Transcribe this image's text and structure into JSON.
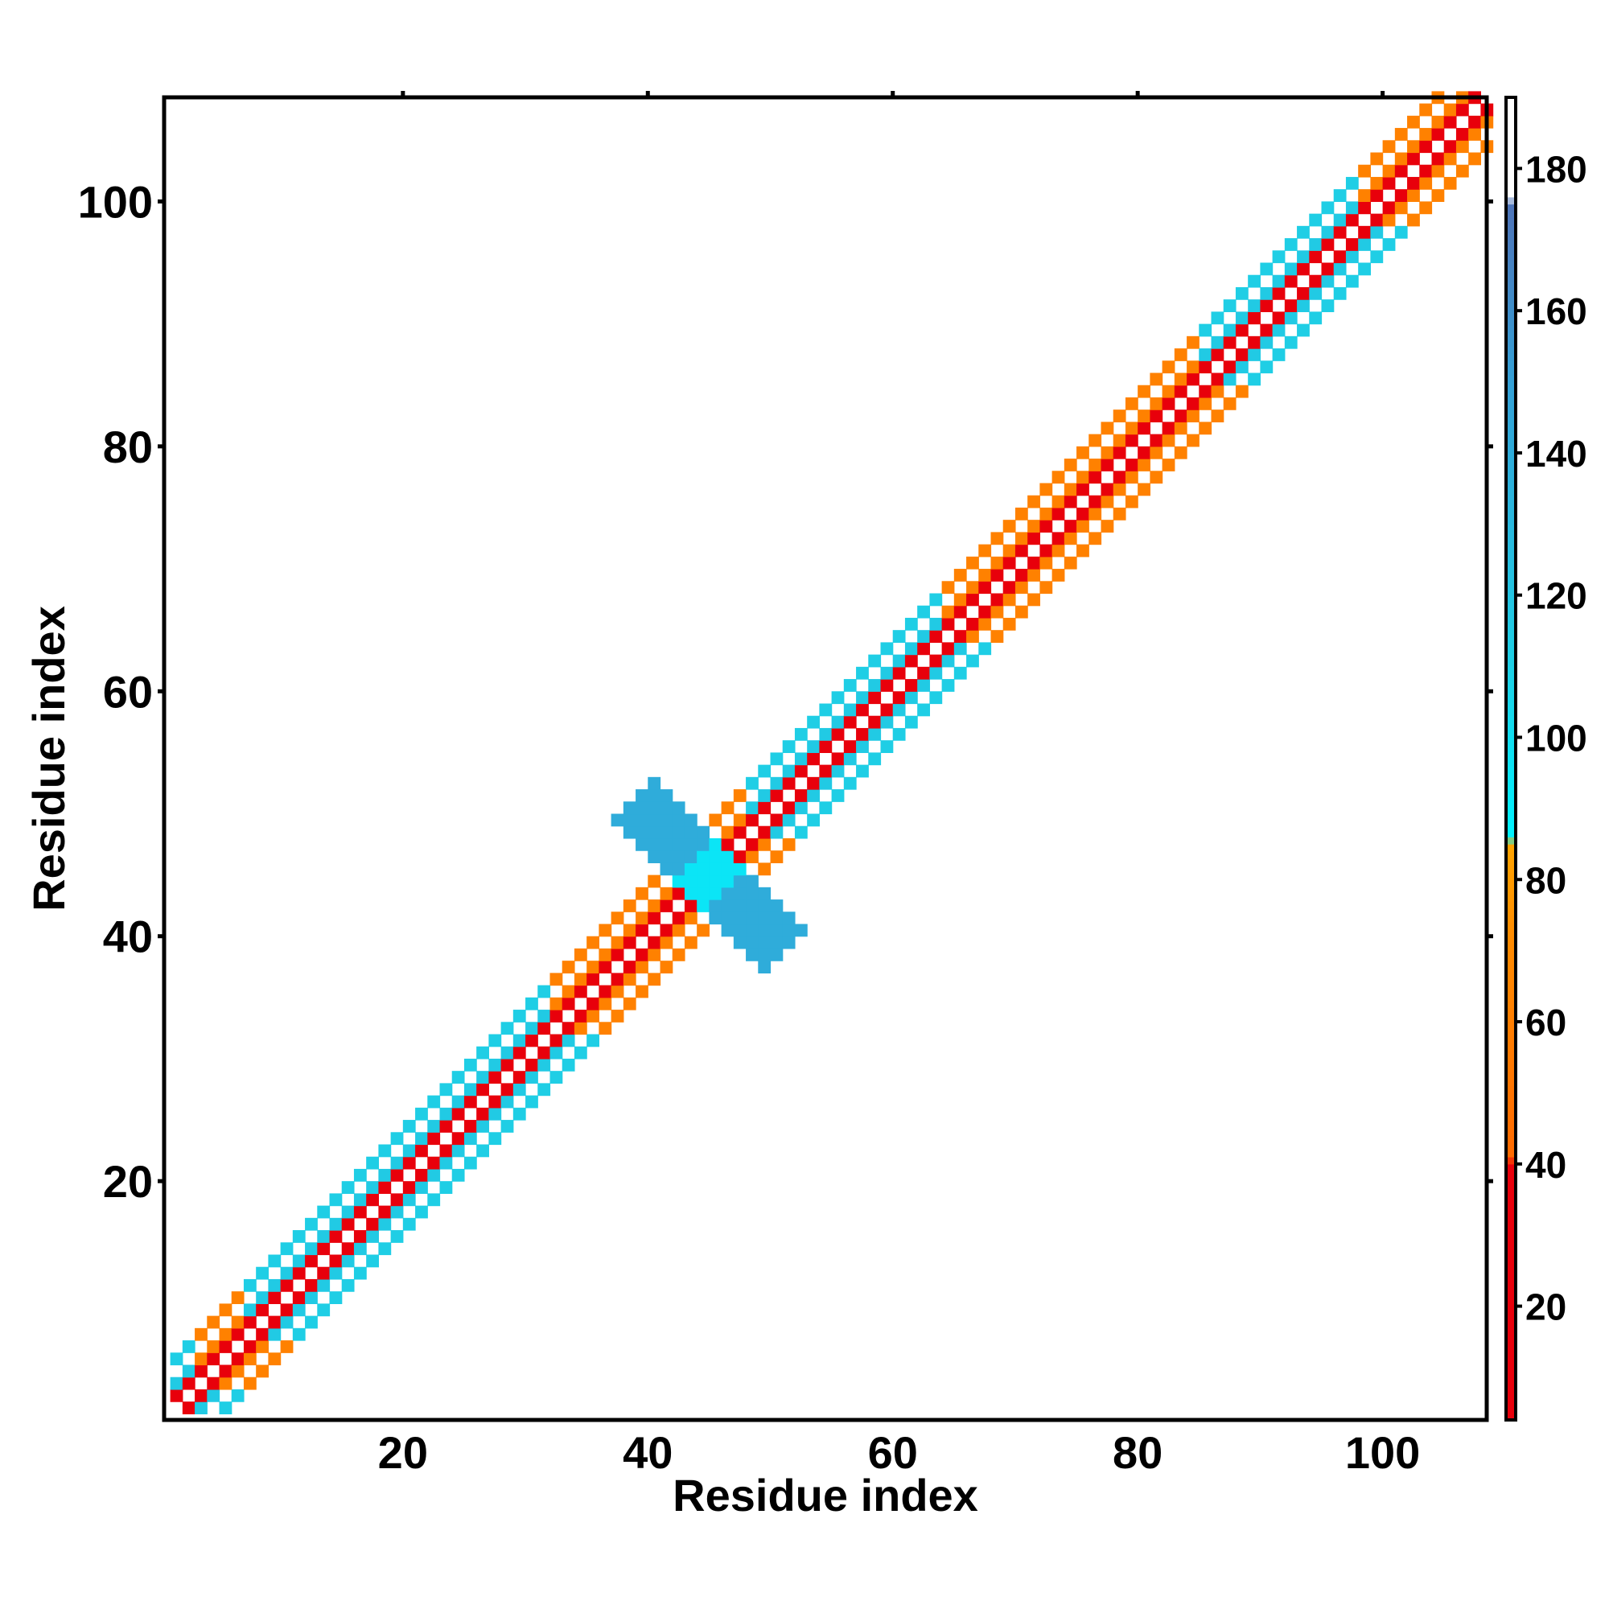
{
  "chart_data": {
    "type": "heatmap",
    "title": "",
    "xlabel": "Residue index",
    "ylabel": "Residue index",
    "xlim": [
      1,
      108
    ],
    "ylim": [
      1,
      108
    ],
    "x_ticks": [
      20,
      40,
      60,
      80,
      100
    ],
    "y_ticks": [
      20,
      40,
      60,
      80,
      100
    ],
    "grid": false,
    "legend": "colorbar-right",
    "colorbar": {
      "range": [
        4,
        190
      ],
      "ticks": [
        20,
        40,
        60,
        80,
        100,
        120,
        140,
        160,
        180
      ],
      "stops": [
        {
          "value": 4,
          "color": "#e8000b"
        },
        {
          "value": 40,
          "color": "#e8000b"
        },
        {
          "value": 41,
          "color": "#ff6a00"
        },
        {
          "value": 72,
          "color": "#ff8c00"
        },
        {
          "value": 85,
          "color": "#ffa500"
        },
        {
          "value": 86,
          "color": "#00f2ff"
        },
        {
          "value": 110,
          "color": "#1ed0e6"
        },
        {
          "value": 150,
          "color": "#34a0d6"
        },
        {
          "value": 175,
          "color": "#4f74b8"
        },
        {
          "value": 176,
          "color": "#ffffff"
        },
        {
          "value": 190,
          "color": "#ffffff"
        }
      ]
    },
    "band": {
      "n": 108,
      "diagonal_value": 190,
      "offset1_value": 40,
      "offset2_value": 62,
      "offset3_value": 190,
      "offset4_value": 62,
      "blue_ranges": [
        [
          1,
          2
        ],
        [
          7,
          31
        ],
        [
          48,
          63
        ],
        [
          85,
          97
        ]
      ],
      "offset2_blue_value": 115,
      "offset4_blue_value": 112
    },
    "cross_region": {
      "center": [
        44.5,
        44.5
      ],
      "half_width": 1.5,
      "arm_length": 6,
      "core_value": 95,
      "arm_value": 140
    }
  }
}
